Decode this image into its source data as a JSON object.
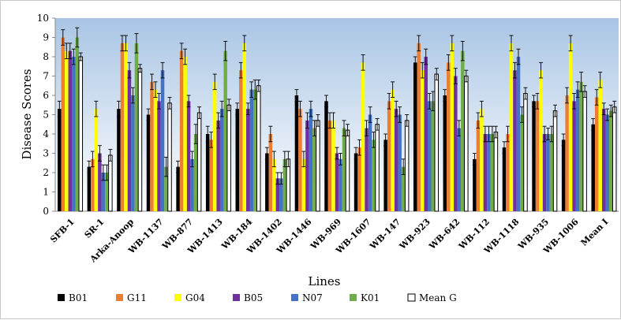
{
  "chart_data": {
    "type": "bar",
    "title": "",
    "xlabel": "Lines",
    "ylabel": "Disease Scores",
    "ylim": [
      0,
      10
    ],
    "yticks": [
      0,
      1,
      2,
      3,
      4,
      5,
      6,
      7,
      8,
      9,
      10
    ],
    "grid": false,
    "legend_position": "bottom",
    "categories": [
      "SFB-1",
      "SR-1",
      "Arka-Anoop",
      "WB-1137",
      "WB-877",
      "WB-1413",
      "WB-184",
      "WB-1402",
      "WB-1446",
      "WB-969",
      "WB-1607",
      "WB-147",
      "WB-923",
      "WB-642",
      "WB-112",
      "WB-1118",
      "WB-935",
      "WB-1006",
      "Mean I"
    ],
    "series": [
      {
        "name": "B01",
        "color": "#000000",
        "values": [
          5.3,
          2.3,
          5.3,
          5.0,
          2.3,
          4.0,
          5.3,
          3.0,
          6.0,
          5.7,
          3.0,
          3.7,
          7.7,
          6.0,
          2.7,
          3.3,
          5.7,
          3.7,
          4.5
        ],
        "errors": [
          0.4,
          0.3,
          0.4,
          0.3,
          0.3,
          0.4,
          0.3,
          0.3,
          0.3,
          0.3,
          0.3,
          0.3,
          0.3,
          0.3,
          0.3,
          0.3,
          0.3,
          0.3,
          0.3
        ]
      },
      {
        "name": "G11",
        "color": "#ed7d31",
        "values": [
          9.0,
          2.7,
          8.7,
          6.7,
          8.3,
          3.7,
          7.3,
          4.0,
          5.3,
          4.7,
          3.3,
          5.7,
          8.7,
          7.7,
          4.7,
          4.0,
          5.7,
          6.0,
          5.9
        ],
        "errors": [
          0.4,
          0.4,
          0.4,
          0.4,
          0.4,
          0.4,
          0.4,
          0.4,
          0.4,
          0.4,
          0.4,
          0.4,
          0.4,
          0.4,
          0.4,
          0.4,
          0.4,
          0.4,
          0.4
        ]
      },
      {
        "name": "G04",
        "color": "#ffff00",
        "values": [
          8.3,
          5.3,
          8.7,
          6.3,
          8.0,
          6.7,
          8.7,
          2.7,
          2.7,
          4.7,
          7.7,
          6.3,
          7.3,
          8.7,
          5.3,
          8.7,
          7.3,
          8.7,
          6.8
        ],
        "errors": [
          0.4,
          0.4,
          0.4,
          0.4,
          0.4,
          0.4,
          0.4,
          0.4,
          0.4,
          0.4,
          0.4,
          0.4,
          0.4,
          0.4,
          0.4,
          0.4,
          0.4,
          0.4,
          0.4
        ]
      },
      {
        "name": "B05",
        "color": "#7030a0",
        "values": [
          8.3,
          3.0,
          7.3,
          5.7,
          5.7,
          4.7,
          5.3,
          1.7,
          4.7,
          3.0,
          4.3,
          5.3,
          8.0,
          7.0,
          4.0,
          7.3,
          4.0,
          5.7,
          5.3
        ],
        "errors": [
          0.4,
          0.4,
          0.4,
          0.4,
          0.3,
          0.4,
          0.3,
          0.3,
          0.4,
          0.3,
          0.4,
          0.4,
          0.4,
          0.4,
          0.4,
          0.4,
          0.4,
          0.4,
          0.3
        ]
      },
      {
        "name": "N07",
        "color": "#4472c4",
        "values": [
          8.0,
          2.0,
          6.0,
          7.3,
          2.7,
          5.3,
          6.3,
          1.7,
          5.3,
          2.7,
          5.0,
          5.0,
          5.7,
          4.3,
          4.0,
          8.0,
          4.0,
          6.3,
          5.0
        ],
        "errors": [
          0.4,
          0.4,
          0.4,
          0.4,
          0.4,
          0.4,
          0.4,
          0.3,
          0.4,
          0.3,
          0.4,
          0.4,
          0.4,
          0.4,
          0.4,
          0.4,
          0.3,
          0.4,
          0.3
        ]
      },
      {
        "name": "K01",
        "color": "#70ad47",
        "values": [
          9.0,
          2.0,
          8.7,
          2.3,
          4.0,
          8.3,
          6.3,
          2.7,
          4.3,
          4.3,
          3.7,
          2.3,
          5.7,
          8.3,
          4.0,
          5.0,
          4.0,
          6.7,
          5.2
        ],
        "errors": [
          0.5,
          0.4,
          0.5,
          0.5,
          0.5,
          0.5,
          0.5,
          0.4,
          0.4,
          0.4,
          0.4,
          0.4,
          0.5,
          0.5,
          0.4,
          0.4,
          0.4,
          0.5,
          0.3
        ]
      },
      {
        "name": "Mean G",
        "color": "#ffffff",
        "values": [
          8.0,
          2.9,
          7.4,
          5.6,
          5.1,
          5.5,
          6.5,
          2.7,
          4.7,
          4.2,
          4.5,
          4.7,
          7.1,
          7.0,
          4.1,
          6.1,
          5.2,
          6.2,
          5.4
        ],
        "errors": [
          0.2,
          0.3,
          0.2,
          0.3,
          0.3,
          0.3,
          0.3,
          0.4,
          0.3,
          0.3,
          0.3,
          0.3,
          0.3,
          0.3,
          0.3,
          0.3,
          0.3,
          0.3,
          0.3
        ]
      }
    ]
  }
}
